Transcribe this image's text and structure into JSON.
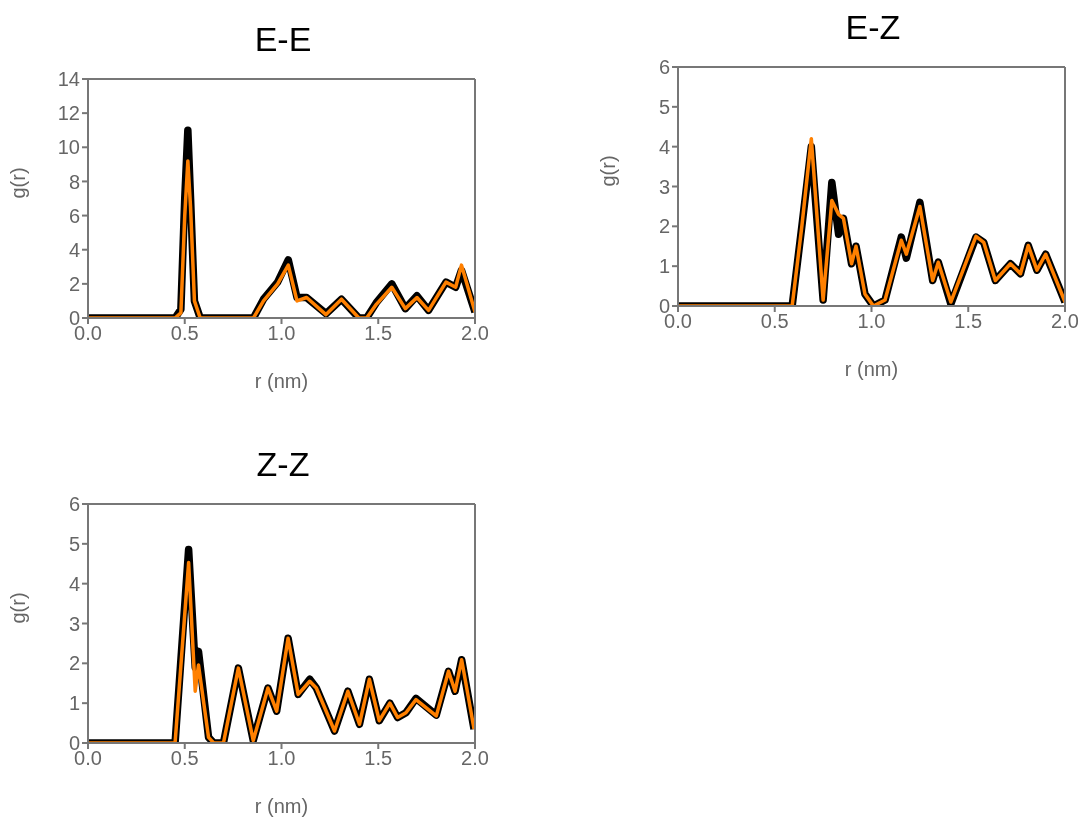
{
  "chart_data": [
    {
      "type": "line",
      "title": "E-E",
      "xlabel": "r (nm)",
      "ylabel": "g(r)",
      "xlim": [
        0,
        2
      ],
      "ylim": [
        0,
        14
      ],
      "xticks": [
        {
          "value": 0,
          "label": "0.0"
        },
        {
          "value": 0.5,
          "label": "0.5"
        },
        {
          "value": 1,
          "label": "1.0"
        },
        {
          "value": 1.5,
          "label": "1.5"
        },
        {
          "value": 2,
          "label": "2.0"
        }
      ],
      "yticks": [
        0,
        2,
        4,
        6,
        8,
        10,
        12,
        14
      ],
      "x": [
        0,
        0.45,
        0.48,
        0.5,
        0.516,
        0.53,
        0.55,
        0.58,
        0.855,
        0.907,
        0.98,
        1.035,
        1.08,
        1.13,
        1.23,
        1.31,
        1.4,
        1.44,
        1.49,
        1.57,
        1.64,
        1.7,
        1.76,
        1.85,
        1.9,
        1.93,
        2.0
      ],
      "series": [
        {
          "color": "#000000",
          "values": [
            0,
            0,
            0.5,
            7,
            11.0,
            7,
            1,
            0,
            0,
            1.1,
            2.1,
            3.4,
            1.2,
            1.2,
            0.25,
            1.1,
            0,
            0,
            0.9,
            2.0,
            0.55,
            1.3,
            0.45,
            2.1,
            1.8,
            2.8,
            0.35
          ]
        },
        {
          "color": "#ff8000",
          "values": [
            0,
            0,
            0.3,
            6,
            9.2,
            6.5,
            1,
            0,
            0,
            1.0,
            2.0,
            3.1,
            1.0,
            1.2,
            0.2,
            1.1,
            0,
            0,
            0.8,
            1.8,
            0.55,
            1.2,
            0.45,
            2.1,
            1.8,
            3.1,
            0.35
          ]
        }
      ]
    },
    {
      "type": "line",
      "title": "E-Z",
      "xlabel": "r (nm)",
      "ylabel": "g(r)",
      "xlim": [
        0,
        2
      ],
      "ylim": [
        0,
        6
      ],
      "xticks": [
        {
          "value": 0,
          "label": "0.0"
        },
        {
          "value": 0.5,
          "label": "0.5"
        },
        {
          "value": 1,
          "label": "1.0"
        },
        {
          "value": 1.5,
          "label": "1.5"
        },
        {
          "value": 2,
          "label": "2.0"
        }
      ],
      "yticks": [
        0,
        1,
        2,
        3,
        4,
        5,
        6
      ],
      "x": [
        0,
        0.59,
        0.64,
        0.689,
        0.75,
        0.795,
        0.83,
        0.855,
        0.897,
        0.92,
        0.966,
        1.01,
        1.07,
        1.154,
        1.18,
        1.25,
        1.316,
        1.345,
        1.41,
        1.54,
        1.58,
        1.64,
        1.718,
        1.77,
        1.81,
        1.855,
        1.9,
        2.0
      ],
      "series": [
        {
          "color": "#000000",
          "values": [
            0,
            0,
            2.0,
            4.0,
            0.15,
            3.1,
            1.8,
            2.2,
            1.06,
            1.5,
            0.3,
            0,
            0.15,
            1.73,
            1.2,
            2.6,
            0.64,
            1.1,
            0.05,
            1.73,
            1.6,
            0.64,
            1.06,
            0.81,
            1.52,
            0.9,
            1.3,
            0.1
          ]
        },
        {
          "color": "#ff8000",
          "values": [
            0,
            0,
            2.0,
            4.2,
            0.15,
            2.65,
            2.3,
            2.2,
            1.06,
            1.5,
            0.3,
            0,
            0.15,
            1.65,
            1.3,
            2.5,
            0.64,
            1.1,
            0.1,
            1.75,
            1.6,
            0.64,
            1.06,
            0.81,
            1.52,
            0.9,
            1.3,
            0.1
          ]
        }
      ]
    },
    {
      "type": "line",
      "title": "Z-Z",
      "xlabel": "r (nm)",
      "ylabel": "g(r)",
      "xlim": [
        0,
        2
      ],
      "ylim": [
        0,
        6
      ],
      "xticks": [
        {
          "value": 0,
          "label": "0.0"
        },
        {
          "value": 0.5,
          "label": "0.5"
        },
        {
          "value": 1,
          "label": "1.0"
        },
        {
          "value": 1.5,
          "label": "1.5"
        },
        {
          "value": 2,
          "label": "2.0"
        }
      ],
      "yticks": [
        0,
        1,
        2,
        3,
        4,
        5,
        6
      ],
      "x": [
        0,
        0.45,
        0.52,
        0.554,
        0.571,
        0.623,
        0.65,
        0.7,
        0.777,
        0.854,
        0.93,
        0.975,
        1.034,
        1.086,
        1.146,
        1.18,
        1.274,
        1.343,
        1.403,
        1.454,
        1.505,
        1.56,
        1.6,
        1.643,
        1.695,
        1.8,
        1.863,
        1.897,
        1.931,
        1.995
      ],
      "series": [
        {
          "color": "#000000",
          "values": [
            0,
            0,
            4.86,
            1.9,
            2.3,
            0.14,
            0,
            0,
            1.88,
            0.06,
            1.38,
            0.8,
            2.63,
            1.22,
            1.6,
            1.38,
            0.3,
            1.3,
            0.47,
            1.6,
            0.56,
            1.0,
            0.64,
            0.76,
            1.12,
            0.7,
            1.8,
            1.3,
            2.09,
            0.35
          ]
        },
        {
          "color": "#ff8000",
          "values": [
            0,
            0,
            4.53,
            1.3,
            1.96,
            0.14,
            0,
            0,
            1.88,
            0.06,
            1.38,
            0.8,
            2.63,
            1.22,
            1.55,
            1.38,
            0.3,
            1.3,
            0.47,
            1.6,
            0.56,
            1.0,
            0.64,
            0.76,
            1.09,
            0.68,
            1.8,
            1.3,
            2.09,
            0.35
          ]
        }
      ]
    }
  ]
}
